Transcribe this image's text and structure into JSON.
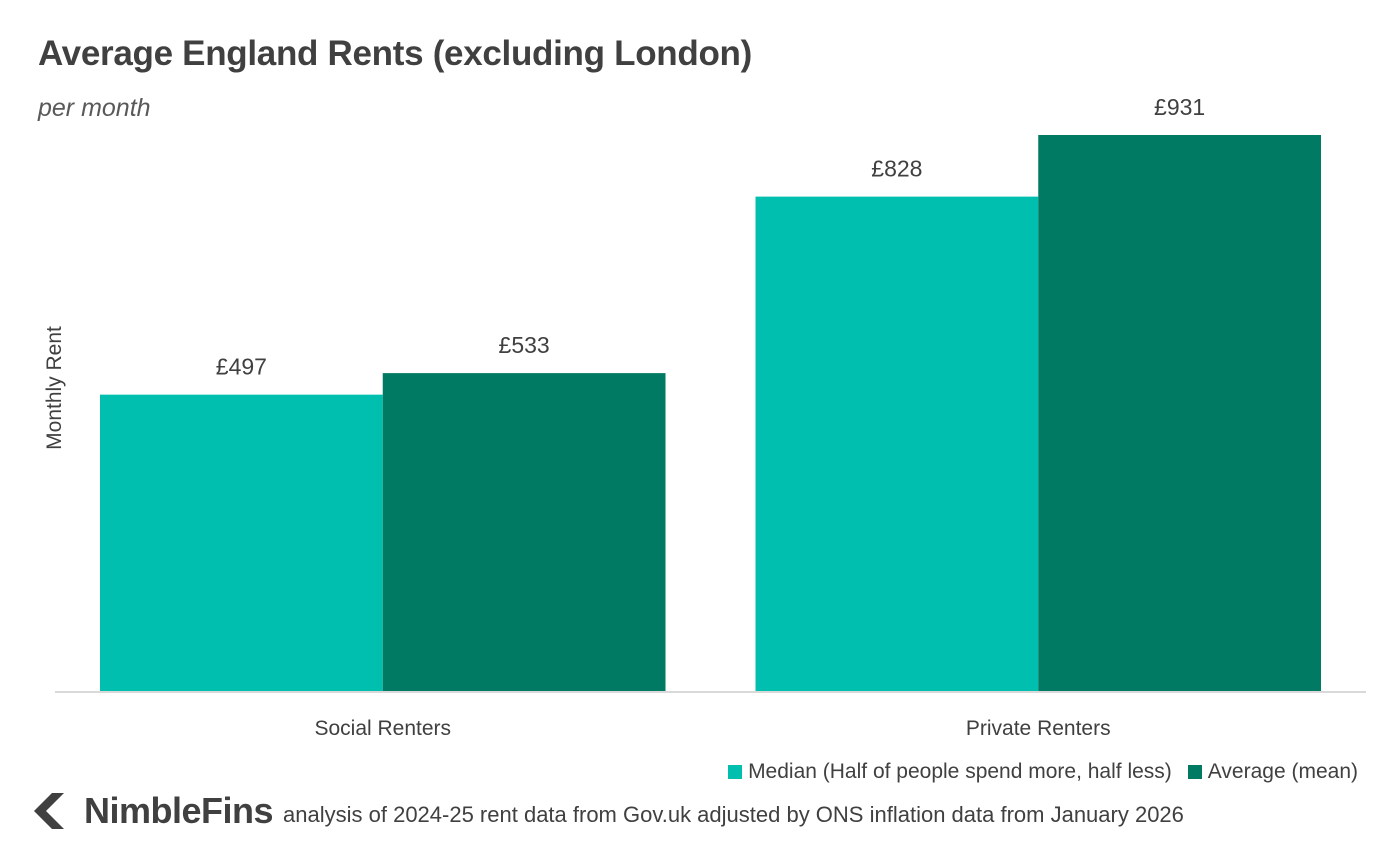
{
  "chart_data": {
    "type": "bar",
    "title": "Average England Rents (excluding London)",
    "subtitle": "per month",
    "ylabel": "Monthly Rent",
    "xlabel": "",
    "categories": [
      "Social Renters",
      "Private Renters"
    ],
    "series": [
      {
        "name": "Median (Half of people spend more, half less)",
        "values": [
          497,
          828
        ],
        "labels": [
          "£497",
          "£828"
        ],
        "color": "#00bfae"
      },
      {
        "name": "Average (mean)",
        "values": [
          533,
          931
        ],
        "labels": [
          "£533",
          "£931"
        ],
        "color": "#007a63"
      }
    ],
    "ylim": [
      0,
      931
    ],
    "grid": false,
    "legend_position": "bottom-right",
    "axis_color": "#d9d9d9"
  },
  "footer": {
    "brand": "NimbleFins",
    "logo_icon": "chevron-left-icon",
    "source": "analysis of 2024-25 rent data from Gov.uk adjusted by ONS inflation data from January 2026"
  }
}
